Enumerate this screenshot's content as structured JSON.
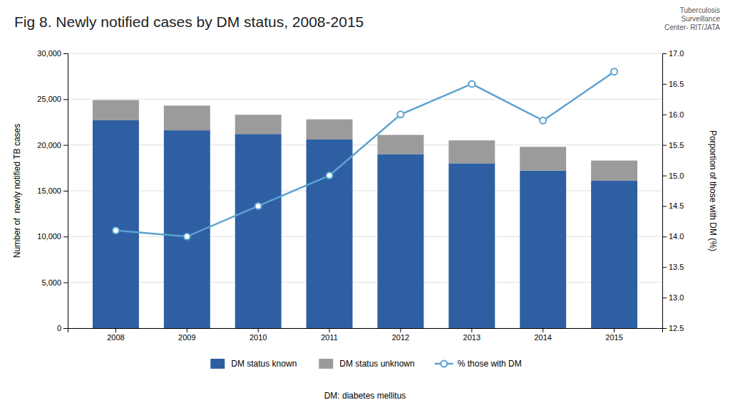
{
  "chart_data": {
    "type": "bar",
    "title": "Fig 8. Newly notified cases by DM status, 2008-2015",
    "ylabel": "Number of  newly notified TB cases",
    "y2label": "Porportion of those with DM (%)",
    "annotations": [
      "DM: diabetes mellitus",
      "Tuberculosis\nSurveillance\nCenter- RIT/JATA"
    ],
    "categories": [
      "2008",
      "2009",
      "2010",
      "2011",
      "2012",
      "2013",
      "2014",
      "2015"
    ],
    "series": [
      {
        "name": "DM status known",
        "type": "bar",
        "color": "#2e5fa3",
        "values": [
          22700,
          21600,
          21200,
          20600,
          19000,
          18000,
          17200,
          16100
        ]
      },
      {
        "name": "DM status unknown",
        "type": "bar",
        "color": "#9b9b9b",
        "values": [
          2200,
          2700,
          2100,
          2200,
          2100,
          2500,
          2600,
          2200
        ]
      },
      {
        "name": "% those with DM",
        "type": "line",
        "axis": "y2",
        "marker": "circle",
        "color": "#5ba3d0",
        "values": [
          14.1,
          14.0,
          14.5,
          15.0,
          16.0,
          16.5,
          15.9,
          16.7
        ]
      }
    ],
    "stacked": true,
    "grid": true,
    "legend": "bottom",
    "ylim": [
      0,
      30000
    ],
    "yticks": [
      0,
      {
        "value": 5000,
        "label": "5,000"
      },
      {
        "value": 10000,
        "label": "10,000"
      },
      {
        "value": 15000,
        "label": "15,000"
      },
      {
        "value": 20000,
        "label": "20,000"
      },
      {
        "value": 25000,
        "label": "25,000"
      },
      {
        "value": 30000,
        "label": "30,000"
      }
    ],
    "y2lim": [
      12.5,
      17.0
    ],
    "y2ticks": [
      12.5,
      {
        "value": 13.0,
        "label": "13.0"
      },
      13.5,
      {
        "value": 14.0,
        "label": "14.0"
      },
      14.5,
      {
        "value": 15.0,
        "label": "15.0"
      },
      15.5,
      {
        "value": 16.0,
        "label": "16.0"
      },
      16.5,
      {
        "value": 17.0,
        "label": "17.0"
      }
    ]
  }
}
